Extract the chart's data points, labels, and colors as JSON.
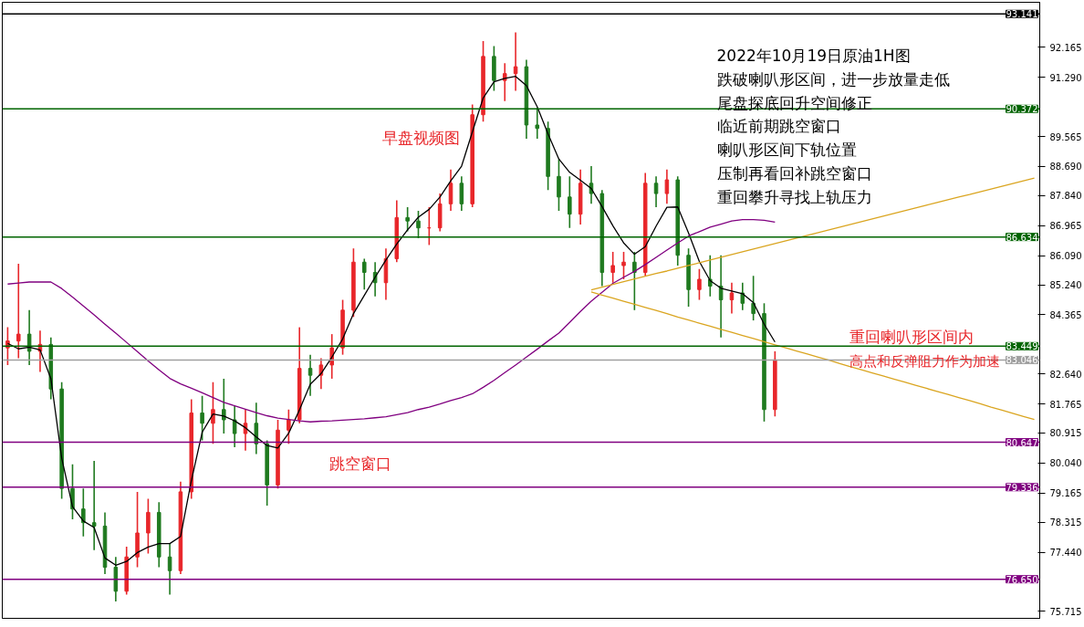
{
  "chart_data": {
    "type": "candlestick",
    "categories": [
      null,
      null,
      null,
      null,
      null,
      null,
      null,
      null,
      null,
      null,
      null,
      null,
      null,
      null,
      null,
      null,
      null,
      null,
      null,
      null,
      null,
      null,
      null,
      null,
      null,
      null,
      null,
      null,
      null,
      null,
      null,
      null,
      null,
      null,
      null,
      null,
      null,
      null,
      null,
      null,
      null,
      null,
      null,
      null,
      null,
      null,
      null,
      null,
      null,
      null,
      null,
      null,
      null,
      null,
      null,
      null,
      null,
      null,
      null,
      null,
      null,
      null,
      null,
      null,
      null,
      null,
      null,
      null,
      null,
      null,
      null,
      null,
      null,
      null,
      null,
      null,
      null,
      null,
      null,
      null,
      null,
      null,
      null,
      null,
      null,
      null,
      null,
      null,
      null,
      null,
      null,
      null,
      null,
      null,
      null,
      null
    ],
    "colors": [
      "#e8262a",
      "#e8262a",
      "#1f7a1f",
      "#e8262a",
      "#1f7a1f",
      "#1f7a1f",
      "#1f7a1f",
      "#1f7a1f",
      "#1f7a1f",
      "#1f7a1f",
      "#1f7a1f",
      "#e8262a",
      "#e8262a",
      "#e8262a",
      "#1f7a1f",
      "#1f7a1f",
      "#e8262a",
      "#e8262a",
      "#1f7a1f",
      "#e8262a",
      "#1f7a1f",
      "#1f7a1f",
      "#e8262a",
      "#1f7a1f",
      "#1f7a1f",
      "#e8262a",
      "#e8262a",
      "#e8262a",
      "#1f7a1f",
      "#e8262a",
      "#e8262a",
      "#e8262a",
      "#e8262a",
      "#1f7a1f",
      "#1f7a1f",
      "#e8262a",
      "#e8262a",
      "#1f7a1f",
      "#1f7a1f",
      "#e8262a",
      "#e8262a",
      "#e8262a",
      "#1f7a1f",
      "#e8262a",
      "#e8262a",
      "#1f7a1f",
      "#e8262a",
      "#e8262a",
      "#1f7a1f",
      "#1f7a1f",
      "#1f7a1f",
      "#1f7a1f",
      "#1f7a1f",
      "#e8262a",
      "#1f7a1f",
      "#1f7a1f",
      "#e8262a",
      "#e8262a",
      "#1f7a1f",
      "#e8262a",
      "#1f7a1f",
      "#e8262a",
      "#1f7a1f",
      "#1f7a1f",
      "#e8262a",
      "#1f7a1f",
      "#1f7a1f",
      "#e8262a",
      "#1f7a1f",
      "#1f7a1f",
      "#1f7a1f",
      "#e8262a",
      null,
      null,
      null,
      null,
      null,
      null,
      null,
      null,
      null,
      null,
      null,
      null,
      null,
      null,
      null,
      null,
      null,
      null,
      null,
      null,
      null,
      null,
      null,
      null
    ],
    "ohlc": [
      [
        83.4,
        84.0,
        82.9,
        83.6
      ],
      [
        83.6,
        85.85,
        83.1,
        83.8
      ],
      [
        83.8,
        84.5,
        82.9,
        83.3
      ],
      [
        83.3,
        83.9,
        82.7,
        83.5
      ],
      [
        83.5,
        83.7,
        81.9,
        82.2
      ],
      [
        82.2,
        82.4,
        79.0,
        79.3
      ],
      [
        79.3,
        80.0,
        78.4,
        78.7
      ],
      [
        78.7,
        79.3,
        77.9,
        78.3
      ],
      [
        78.3,
        80.1,
        77.5,
        78.2
      ],
      [
        78.2,
        78.6,
        76.8,
        77.0
      ],
      [
        77.0,
        77.3,
        76.0,
        76.3
      ],
      [
        76.3,
        77.6,
        76.2,
        77.3
      ],
      [
        77.3,
        79.2,
        77.0,
        78.0
      ],
      [
        78.0,
        79.0,
        77.4,
        78.6
      ],
      [
        78.6,
        78.9,
        77.0,
        77.3
      ],
      [
        77.3,
        77.7,
        76.2,
        76.9
      ],
      [
        76.9,
        79.5,
        76.8,
        79.2
      ],
      [
        79.2,
        81.9,
        79.0,
        81.5
      ],
      [
        81.5,
        82.0,
        80.7,
        81.2
      ],
      [
        81.2,
        82.4,
        80.6,
        81.6
      ],
      [
        81.6,
        82.5,
        80.9,
        81.3
      ],
      [
        81.3,
        81.7,
        80.5,
        80.9
      ],
      [
        80.9,
        81.6,
        80.4,
        81.2
      ],
      [
        81.2,
        81.8,
        80.3,
        80.6
      ],
      [
        80.6,
        80.7,
        78.8,
        79.4
      ],
      [
        79.4,
        81.3,
        79.3,
        81.0
      ],
      [
        81.0,
        81.6,
        80.6,
        81.3
      ],
      [
        81.3,
        84.0,
        81.2,
        82.8
      ],
      [
        82.8,
        83.2,
        82.0,
        82.6
      ],
      [
        82.6,
        83.1,
        82.2,
        82.9
      ],
      [
        82.9,
        83.8,
        82.5,
        83.4
      ],
      [
        83.4,
        84.8,
        83.2,
        84.5
      ],
      [
        84.5,
        86.3,
        84.3,
        85.9
      ],
      [
        85.9,
        86.0,
        85.1,
        85.6
      ],
      [
        85.6,
        85.9,
        84.9,
        85.3
      ],
      [
        85.3,
        86.3,
        84.8,
        86.0
      ],
      [
        86.0,
        87.7,
        85.9,
        87.2
      ],
      [
        87.2,
        87.5,
        86.8,
        87.1
      ],
      [
        87.1,
        87.4,
        86.6,
        86.9
      ],
      [
        86.9,
        87.5,
        86.4,
        86.9
      ],
      [
        86.9,
        87.9,
        86.8,
        87.6
      ],
      [
        87.6,
        88.6,
        87.4,
        88.2
      ],
      [
        88.2,
        88.4,
        87.4,
        87.6
      ],
      [
        87.6,
        90.5,
        87.5,
        90.2
      ],
      [
        90.2,
        92.35,
        90.0,
        91.9
      ],
      [
        91.9,
        92.2,
        90.9,
        91.2
      ],
      [
        91.2,
        91.7,
        90.6,
        91.4
      ],
      [
        91.4,
        92.6,
        90.9,
        91.6
      ],
      [
        91.6,
        91.8,
        89.5,
        89.9
      ],
      [
        89.9,
        90.4,
        89.5,
        89.8
      ],
      [
        89.8,
        90.0,
        88.0,
        88.4
      ],
      [
        88.4,
        88.9,
        87.4,
        87.8
      ],
      [
        87.8,
        88.4,
        86.9,
        87.3
      ],
      [
        87.3,
        88.6,
        87.0,
        88.2
      ],
      [
        88.2,
        88.7,
        87.6,
        87.9
      ],
      [
        87.9,
        88.0,
        85.2,
        85.6
      ],
      [
        85.6,
        86.2,
        85.3,
        85.8
      ],
      [
        85.8,
        86.2,
        85.4,
        85.9
      ],
      [
        85.9,
        86.2,
        84.5,
        85.6
      ],
      [
        85.6,
        88.5,
        85.5,
        88.2
      ],
      [
        88.2,
        88.4,
        87.5,
        87.9
      ],
      [
        87.9,
        88.6,
        87.6,
        88.3
      ],
      [
        88.3,
        88.4,
        85.8,
        86.1
      ],
      [
        86.1,
        86.3,
        84.6,
        85.1
      ],
      [
        85.1,
        85.7,
        84.8,
        85.4
      ],
      [
        85.4,
        86.1,
        84.9,
        85.2
      ],
      [
        85.2,
        86.1,
        83.7,
        84.8
      ],
      [
        84.8,
        85.3,
        84.4,
        85.0
      ],
      [
        85.0,
        85.3,
        84.5,
        84.7
      ],
      [
        84.7,
        85.5,
        84.2,
        84.4
      ],
      [
        84.4,
        84.7,
        81.25,
        81.6
      ],
      [
        81.6,
        83.3,
        81.4,
        83.05
      ],
      null,
      null,
      null,
      null,
      null,
      null,
      null,
      null,
      null,
      null,
      null,
      null,
      null,
      null,
      null,
      null,
      null,
      null,
      null,
      null,
      null,
      null,
      null,
      null
    ],
    "series": [
      {
        "type": "line",
        "color": "#000000",
        "values": [
          83.53,
          83.37,
          83.42,
          83.34,
          82.5,
          80.18,
          78.77,
          78.35,
          78.16,
          77.27,
          77.06,
          77.17,
          77.43,
          77.59,
          77.69,
          77.69,
          77.9,
          79.53,
          80.94,
          81.47,
          81.41,
          81.27,
          81.07,
          80.8,
          80.55,
          80.48,
          80.91,
          81.59,
          82.34,
          82.65,
          83.13,
          83.66,
          84.4,
          84.93,
          85.46,
          85.96,
          86.43,
          86.84,
          87.21,
          87.44,
          87.8,
          88.27,
          88.7,
          89.7,
          90.69,
          91.16,
          91.26,
          91.32,
          91.05,
          90.43,
          89.64,
          88.91,
          88.52,
          88.29,
          88.05,
          87.52,
          86.96,
          86.46,
          86.13,
          86.35,
          86.95,
          87.5,
          87.51,
          86.75,
          85.92,
          85.36,
          85.14,
          85.06,
          84.98,
          84.72,
          84.09,
          83.57,
          null,
          null,
          null,
          null,
          null,
          null,
          null,
          null,
          null,
          null,
          null,
          null,
          null,
          null,
          null,
          null,
          null,
          null,
          null,
          null,
          null,
          null,
          null,
          null
        ]
      },
      {
        "type": "line",
        "color": "#800080",
        "values": [
          85.26,
          85.29,
          85.32,
          85.32,
          85.32,
          85.13,
          84.88,
          84.62,
          84.36,
          84.09,
          83.83,
          83.56,
          83.29,
          83.02,
          82.76,
          82.51,
          82.35,
          82.22,
          82.09,
          81.95,
          81.81,
          81.71,
          81.61,
          81.51,
          81.42,
          81.35,
          81.31,
          81.27,
          81.24,
          81.26,
          81.27,
          81.29,
          81.31,
          81.33,
          81.36,
          81.39,
          81.45,
          81.51,
          81.6,
          81.67,
          81.76,
          81.86,
          81.95,
          82.06,
          82.25,
          82.45,
          82.68,
          82.9,
          83.13,
          83.36,
          83.6,
          83.83,
          84.14,
          84.46,
          84.76,
          85.02,
          85.28,
          85.46,
          85.63,
          85.83,
          86.04,
          86.25,
          86.46,
          86.66,
          86.79,
          86.92,
          87.01,
          87.1,
          87.14,
          87.14,
          87.12,
          87.07,
          null,
          null,
          null,
          null,
          null,
          null,
          null,
          null,
          null,
          null,
          null,
          null,
          null,
          null,
          null,
          null,
          null,
          null,
          null,
          null,
          null,
          null,
          null,
          null
        ]
      },
      {
        "type": "line",
        "color": "#daa520",
        "values": [
          null,
          null,
          null,
          null,
          null,
          null,
          null,
          null,
          null,
          null,
          null,
          null,
          null,
          null,
          null,
          null,
          null,
          null,
          null,
          null,
          null,
          null,
          null,
          null,
          null,
          null,
          null,
          null,
          null,
          null,
          null,
          null,
          null,
          null,
          null,
          null,
          null,
          null,
          null,
          null,
          null,
          null,
          null,
          null,
          null,
          null,
          null,
          null,
          null,
          null,
          null,
          null,
          null,
          null,
          85.09,
          85.17,
          85.25,
          85.33,
          85.41,
          85.49,
          85.57,
          85.64,
          85.72,
          85.8,
          85.88,
          85.96,
          86.04,
          86.12,
          86.2,
          86.28,
          86.36,
          86.44,
          86.52,
          86.6,
          86.68,
          86.76,
          86.84,
          86.92,
          87.0,
          87.08,
          87.16,
          87.24,
          87.32,
          87.4,
          87.48,
          87.56,
          87.64,
          87.72,
          87.8,
          87.87,
          87.95,
          88.03,
          88.11,
          88.19,
          88.27,
          88.35
        ]
      },
      {
        "type": "line",
        "color": "#daa520",
        "values": [
          null,
          null,
          null,
          null,
          null,
          null,
          null,
          null,
          null,
          null,
          null,
          null,
          null,
          null,
          null,
          null,
          null,
          null,
          null,
          null,
          null,
          null,
          null,
          null,
          null,
          null,
          null,
          null,
          null,
          null,
          null,
          null,
          null,
          null,
          null,
          null,
          null,
          null,
          null,
          null,
          null,
          null,
          null,
          null,
          null,
          null,
          null,
          null,
          null,
          null,
          null,
          null,
          null,
          null,
          85.03,
          84.94,
          84.85,
          84.76,
          84.67,
          84.58,
          84.49,
          84.4,
          84.3,
          84.21,
          84.12,
          84.03,
          83.94,
          83.85,
          83.76,
          83.67,
          83.58,
          83.49,
          83.4,
          83.31,
          83.22,
          83.13,
          83.04,
          82.94,
          82.85,
          82.76,
          82.67,
          82.58,
          82.49,
          82.4,
          82.31,
          82.22,
          82.13,
          82.04,
          81.95,
          81.86,
          81.77,
          81.67,
          81.58,
          81.49,
          81.4,
          81.31
        ]
      }
    ],
    "ref_lines": [
      {
        "axis": "y",
        "value": 93.141,
        "label": "93.141",
        "color": "#000000"
      },
      {
        "axis": "y",
        "value": 90.372,
        "label": "90.372",
        "color": "#006400"
      },
      {
        "axis": "y",
        "value": 86.634,
        "label": "86.634",
        "color": "#006400"
      },
      {
        "axis": "y",
        "value": 83.449,
        "label": "83.449",
        "color": "#006400"
      },
      {
        "axis": "y",
        "value": 83.046,
        "label": "83.046",
        "color": "#a0a0a0"
      },
      {
        "axis": "y",
        "value": 80.647,
        "label": "80.647",
        "color": "#800080"
      },
      {
        "axis": "y",
        "value": 79.336,
        "label": "79.336",
        "color": "#800080"
      },
      {
        "axis": "y",
        "value": 76.65,
        "label": "76.650",
        "color": "#800080"
      }
    ],
    "annotations": [
      "2022年10月19日原油1H图",
      "跌破喇叭形区间，进一步放量走低",
      "尾盘探底回升空间修正",
      "临近前期跳空窗口",
      "喇叭形区间下轨位置",
      "压制再看回补跳空窗口",
      "重回攀升寻找上轨压力",
      "早盘视频图",
      "跳空窗口",
      "重回喇叭形区间内",
      "高点和反弹阻力作为加速"
    ],
    "ylim": [
      75.51,
      93.48
    ],
    "yticks": [
      {
        "value": 75.715,
        "label": "75.715"
      },
      {
        "value": 77.44,
        "label": "77.440"
      },
      {
        "value": 78.315,
        "label": "78.315"
      },
      {
        "value": 79.165,
        "label": "79.165"
      },
      {
        "value": 80.04,
        "label": "80.040"
      },
      {
        "value": 80.915,
        "label": "80.915"
      },
      {
        "value": 81.765,
        "label": "81.765"
      },
      {
        "value": 82.64,
        "label": "82.640"
      },
      {
        "value": 84.365,
        "label": "84.365"
      },
      {
        "value": 85.24,
        "label": "85.240"
      },
      {
        "value": 86.09,
        "label": "86.090"
      },
      {
        "value": 86.965,
        "label": "86.965"
      },
      {
        "value": 87.84,
        "label": "87.840"
      },
      {
        "value": 88.69,
        "label": "88.690"
      },
      {
        "value": 89.565,
        "label": "89.565"
      },
      {
        "value": 91.29,
        "label": "91.290"
      },
      {
        "value": 92.165,
        "label": "92.165"
      }
    ],
    "tick_labels": "y",
    "grid": false
  }
}
